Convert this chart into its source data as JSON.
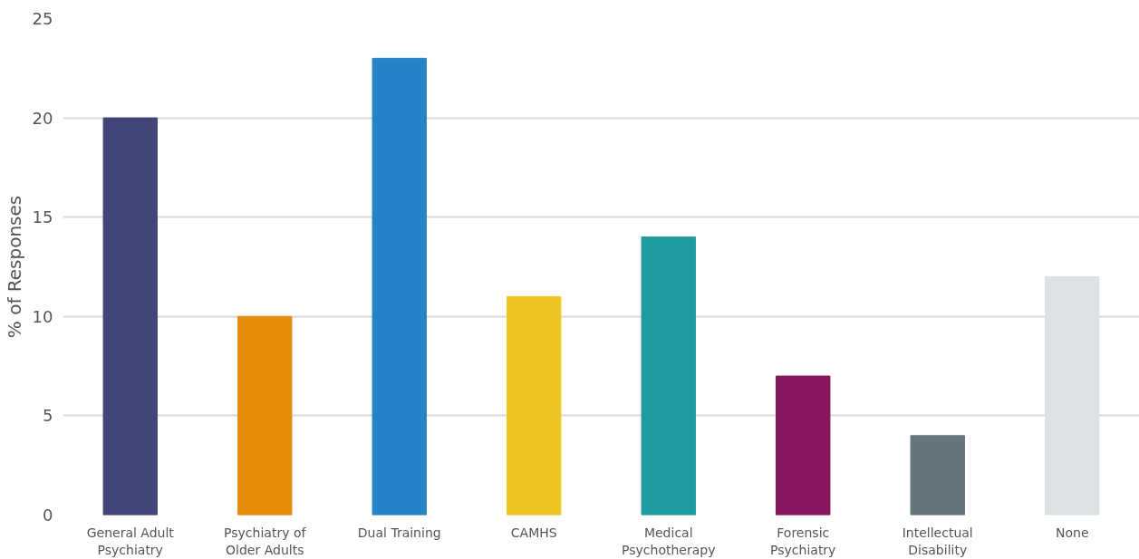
{
  "chart_data": {
    "type": "bar",
    "ylabel": "% of Responses",
    "categories": [
      "General Adult Psychiatry",
      "Psychiatry of Older Adults",
      "Dual Training",
      "CAMHS",
      "Medical Psychotherapy",
      "Forensic Psychiatry",
      "Intellectual Disability",
      "None"
    ],
    "values": [
      20,
      10,
      23,
      11,
      14,
      7,
      4,
      12
    ],
    "colors": [
      "#424577",
      "#e58c0a",
      "#2783c7",
      "#ecc424",
      "#1f9ba0",
      "#86175c",
      "#66757d",
      "#dfe2e5"
    ],
    "ylim": [
      0,
      25
    ],
    "yticks": [
      0,
      5,
      10,
      15,
      20,
      25
    ],
    "grid": "y"
  }
}
